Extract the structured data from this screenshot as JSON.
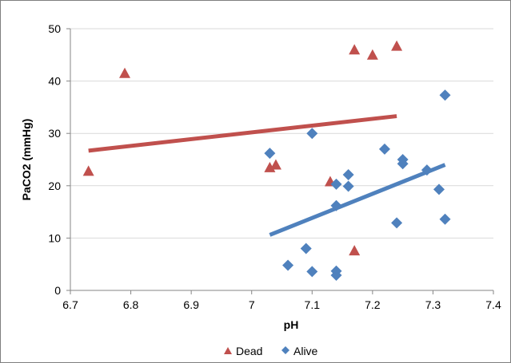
{
  "chart_data": {
    "type": "scatter",
    "title": "",
    "xlabel": "pH",
    "ylabel": "PaCO2 (mmHg)",
    "xlim": [
      6.7,
      7.4
    ],
    "ylim": [
      0,
      50
    ],
    "x_ticks": [
      "6.7",
      "6.8",
      "6.9",
      "7",
      "7.1",
      "7.2",
      "7.3",
      "7.4"
    ],
    "y_ticks": [
      "0",
      "10",
      "20",
      "30",
      "40",
      "50"
    ],
    "grid": "horizontal",
    "legend": "bottom",
    "series": [
      {
        "name": "Dead",
        "marker": "triangle",
        "color": "#c0504d",
        "points": [
          [
            6.73,
            22.8
          ],
          [
            6.79,
            41.5
          ],
          [
            7.03,
            23.5
          ],
          [
            7.04,
            24.0
          ],
          [
            7.13,
            20.8
          ],
          [
            7.17,
            46.0
          ],
          [
            7.2,
            45.0
          ],
          [
            7.24,
            46.7
          ],
          [
            7.17,
            7.6
          ]
        ],
        "trendline": [
          [
            6.73,
            26.7
          ],
          [
            7.24,
            33.3
          ]
        ]
      },
      {
        "name": "Alive",
        "marker": "diamond",
        "color": "#4f81bd",
        "points": [
          [
            7.03,
            26.2
          ],
          [
            7.1,
            30.0
          ],
          [
            7.14,
            20.3
          ],
          [
            7.16,
            22.1
          ],
          [
            7.16,
            19.9
          ],
          [
            7.14,
            16.2
          ],
          [
            7.22,
            27.0
          ],
          [
            7.25,
            25.0
          ],
          [
            7.25,
            24.2
          ],
          [
            7.29,
            23.0
          ],
          [
            7.31,
            19.3
          ],
          [
            7.32,
            37.3
          ],
          [
            7.32,
            13.6
          ],
          [
            7.24,
            12.9
          ],
          [
            7.09,
            8.0
          ],
          [
            7.06,
            4.8
          ],
          [
            7.1,
            3.6
          ],
          [
            7.14,
            3.7
          ],
          [
            7.14,
            2.9
          ]
        ],
        "trendline": [
          [
            7.03,
            10.6
          ],
          [
            7.32,
            24.0
          ]
        ]
      }
    ]
  }
}
